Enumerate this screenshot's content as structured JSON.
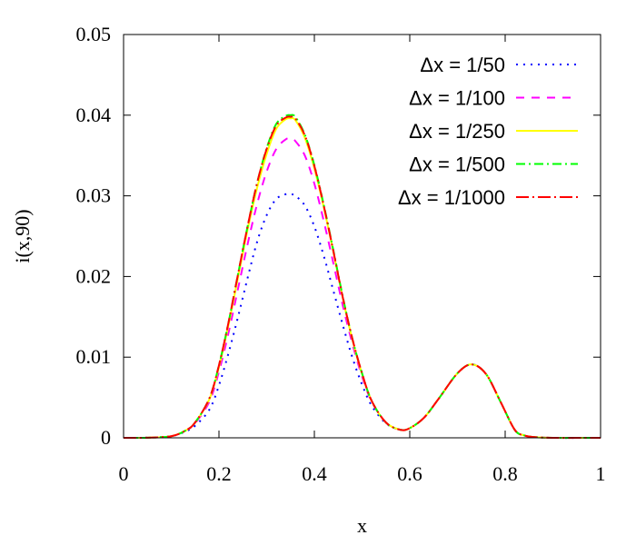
{
  "chart_data": {
    "type": "line",
    "xlabel": "x",
    "ylabel": "i(x,90)",
    "xlim": [
      0,
      1
    ],
    "ylim": [
      0,
      0.05
    ],
    "xticks": [
      0,
      0.2,
      0.4,
      0.6,
      0.8,
      1
    ],
    "xtick_labels": [
      "0",
      "0.2",
      "0.4",
      "0.6",
      "0.8",
      "1"
    ],
    "yticks": [
      0,
      0.01,
      0.02,
      0.03,
      0.04,
      0.05
    ],
    "ytick_labels": [
      "0",
      "0.01",
      "0.02",
      "0.03",
      "0.04",
      "0.05"
    ],
    "grid": false,
    "legend_position": "top-right",
    "x": [
      0,
      0.05,
      0.1,
      0.13,
      0.15,
      0.18,
      0.2,
      0.22,
      0.24,
      0.26,
      0.28,
      0.3,
      0.32,
      0.34,
      0.35,
      0.36,
      0.38,
      0.4,
      0.42,
      0.44,
      0.46,
      0.48,
      0.5,
      0.52,
      0.55,
      0.58,
      0.6,
      0.63,
      0.66,
      0.7,
      0.73,
      0.76,
      0.79,
      0.82,
      0.84,
      0.86,
      0.9,
      1.0
    ],
    "series": [
      {
        "name": "Δx = 1/50",
        "color": "#0000ff",
        "dash": "2,6",
        "values": [
          0,
          2e-05,
          0.0002,
          0.0008,
          0.0015,
          0.0035,
          0.0065,
          0.0105,
          0.015,
          0.0198,
          0.0243,
          0.0276,
          0.0296,
          0.0302,
          0.0302,
          0.03,
          0.0288,
          0.0262,
          0.0225,
          0.0182,
          0.0139,
          0.0099,
          0.0066,
          0.004,
          0.0018,
          0.001,
          0.0012,
          0.0025,
          0.0048,
          0.008,
          0.0091,
          0.0079,
          0.0045,
          0.001,
          0.0003,
          0.0001,
          0,
          0
        ]
      },
      {
        "name": "Δx = 1/100",
        "color": "#ff00ff",
        "dash": "9,8",
        "values": [
          0,
          2e-05,
          0.0002,
          0.0009,
          0.0018,
          0.0045,
          0.0082,
          0.013,
          0.0185,
          0.024,
          0.029,
          0.033,
          0.0358,
          0.037,
          0.0371,
          0.0368,
          0.035,
          0.0315,
          0.0268,
          0.0216,
          0.0163,
          0.0116,
          0.0076,
          0.0045,
          0.0019,
          0.001,
          0.0012,
          0.0025,
          0.0048,
          0.008,
          0.0091,
          0.0079,
          0.0045,
          0.001,
          0.0003,
          0.0001,
          0,
          0
        ]
      },
      {
        "name": "Δx = 1/250",
        "color": "#ffff00",
        "dash": "",
        "values": [
          0,
          2e-05,
          0.0002,
          0.0009,
          0.0019,
          0.0048,
          0.0088,
          0.014,
          0.0199,
          0.0258,
          0.031,
          0.0352,
          0.0383,
          0.0395,
          0.0396,
          0.0394,
          0.0372,
          0.0334,
          0.0285,
          0.023,
          0.0172,
          0.0121,
          0.0079,
          0.0046,
          0.0019,
          0.001,
          0.0012,
          0.0025,
          0.0048,
          0.008,
          0.0091,
          0.0079,
          0.0045,
          0.001,
          0.0003,
          0.0001,
          0,
          0
        ]
      },
      {
        "name": "Δx = 1/500",
        "color": "#00ff00",
        "dash": "10,4,2,4",
        "values": [
          0,
          2e-05,
          0.0002,
          0.0009,
          0.0019,
          0.0049,
          0.009,
          0.0143,
          0.0203,
          0.0262,
          0.0316,
          0.0359,
          0.0389,
          0.0399,
          0.04,
          0.0398,
          0.0376,
          0.0338,
          0.0288,
          0.0232,
          0.0174,
          0.0122,
          0.008,
          0.0046,
          0.0019,
          0.001,
          0.0012,
          0.0025,
          0.0048,
          0.008,
          0.0091,
          0.0079,
          0.0045,
          0.001,
          0.0003,
          0.0001,
          0,
          0
        ]
      },
      {
        "name": "Δx = 1/1000",
        "color": "#ff0000",
        "dash": "14,4,2,4",
        "values": [
          0,
          2e-05,
          0.0002,
          0.0009,
          0.0019,
          0.0049,
          0.009,
          0.0143,
          0.0203,
          0.0262,
          0.0316,
          0.0358,
          0.0387,
          0.0397,
          0.0398,
          0.0396,
          0.0375,
          0.0337,
          0.0287,
          0.0231,
          0.0173,
          0.0122,
          0.008,
          0.0046,
          0.0019,
          0.001,
          0.0012,
          0.0025,
          0.0048,
          0.008,
          0.0091,
          0.0079,
          0.0045,
          0.001,
          0.0003,
          0.0001,
          0,
          0
        ]
      }
    ]
  }
}
